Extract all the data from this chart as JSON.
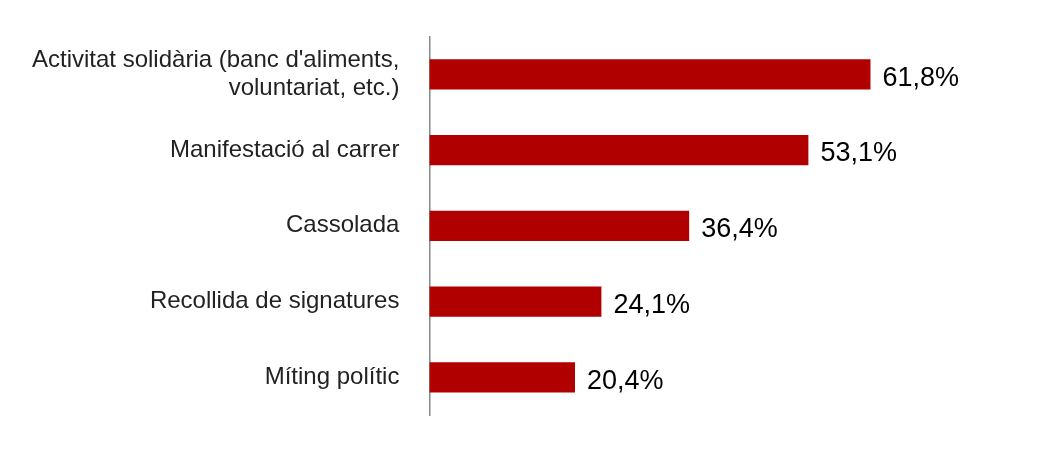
{
  "chart_data": {
    "type": "bar",
    "orientation": "horizontal",
    "categories": [
      "Activitat solidària (banc d'aliments, voluntariat, etc.)",
      "Manifestació al carrer",
      "Cassolada",
      "Recollida de signatures",
      "Míting polític"
    ],
    "values": [
      61.8,
      53.1,
      36.4,
      24.1,
      20.4
    ],
    "value_labels": [
      "61,8%",
      "53,1%",
      "36,4%",
      "24,1%",
      "20,4%"
    ],
    "color": "#b00000",
    "tick_labels": "y"
  }
}
